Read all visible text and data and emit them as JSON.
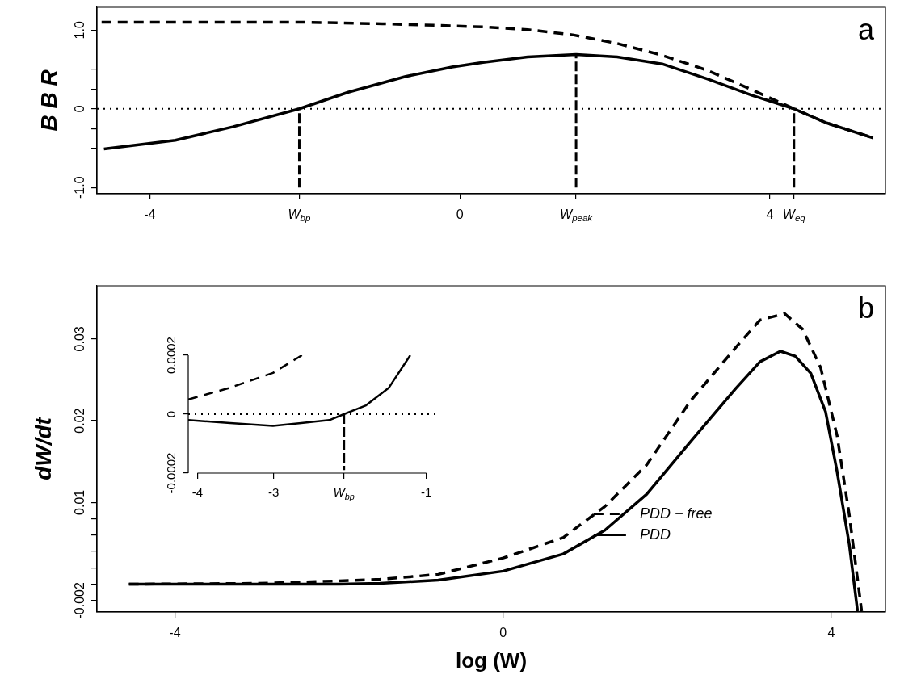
{
  "chart_data": [
    {
      "type": "line",
      "ylabel": "B B R",
      "annotations": [
        "a"
      ],
      "xlim": [
        -4.68,
        5.49
      ],
      "ylim": [
        -1.08,
        1.29
      ],
      "xticks": [
        -4,
        {
          "value": -2.07,
          "label": "W$_{bp}$"
        },
        0,
        {
          "value": 1.5,
          "label": "W$_{peak}$"
        },
        4,
        {
          "value": 4.31,
          "label": "W$_{eq}$"
        }
      ],
      "yticks": [
        {
          "value": -1,
          "label": "-1.0"
        },
        {
          "value": -0.5,
          "label": null
        },
        {
          "value": -0.25,
          "label": null
        },
        0,
        {
          "value": 0.25,
          "label": null
        },
        {
          "value": 0.5,
          "label": null
        },
        {
          "value": 1,
          "label": "1.0"
        }
      ],
      "ref_lines": [
        {
          "axis": "y",
          "value": 0,
          "line_style": "dotted",
          "color": "#000000"
        }
      ],
      "series": [
        {
          "color": "#000000",
          "line_style": "dashed",
          "x": [
            -4.62,
            -3,
            -2,
            -1,
            -0.28,
            0.3,
            0.875,
            1.455,
            2.03,
            2.61,
            3.19,
            3.77,
            4.31,
            4.73,
            5.33
          ],
          "values": [
            1.1,
            1.1,
            1.1,
            1.08,
            1.06,
            1.04,
            1.006,
            0.94,
            0.83,
            0.68,
            0.49,
            0.24,
            0.0,
            -0.18,
            -0.37
          ]
        },
        {
          "color": "#000000",
          "line_style": "solid",
          "x": [
            -4.59,
            -3.67,
            -2.93,
            -2.07,
            -1.44,
            -0.7,
            -0.1,
            0.3,
            0.875,
            1.5,
            2.03,
            2.61,
            3.19,
            3.77,
            4.31,
            4.73,
            5.33
          ],
          "values": [
            -0.51,
            -0.4,
            -0.23,
            0,
            0.21,
            0.41,
            0.53,
            0.59,
            0.66,
            0.69,
            0.66,
            0.57,
            0.38,
            0.17,
            0,
            -0.18,
            -0.37
          ]
        },
        {
          "color": "#000000",
          "line_style": "dashed",
          "x": [
            -2.07,
            -2.07
          ],
          "values": [
            -1,
            0
          ]
        },
        {
          "color": "#000000",
          "line_style": "dashed",
          "x": [
            1.5,
            1.5
          ],
          "values": [
            -1,
            0.69
          ]
        },
        {
          "color": "#000000",
          "line_style": "dashed",
          "x": [
            4.31,
            4.31
          ],
          "values": [
            -1,
            0
          ]
        }
      ]
    },
    {
      "type": "line",
      "xlabel": "log (W)",
      "ylabel": "dW/dt",
      "annotations": [
        "b"
      ],
      "legend": "right",
      "xlim": [
        -4.95,
        4.66
      ],
      "ylim": [
        -0.0034,
        0.0365
      ],
      "xticks": [
        -4,
        0,
        4
      ],
      "yticks": [
        -0.002,
        {
          "value": 0,
          "label": null
        },
        {
          "value": 0.002,
          "label": null
        },
        {
          "value": 0.004,
          "label": null
        },
        {
          "value": 0.006,
          "label": null
        },
        {
          "value": 0.008,
          "label": null
        },
        0.01,
        0.02,
        0.03
      ],
      "series": [
        {
          "name": "PDD − free",
          "color": "#000000",
          "line_style": "dashed",
          "x": [
            -4.56,
            -3,
            -2,
            -1.5,
            -0.79,
            0,
            0.733,
            1.24,
            1.75,
            2.29,
            2.84,
            3.13,
            3.43,
            3.65,
            3.87,
            4.07,
            4.22,
            4.37
          ],
          "values": [
            0,
            0.0001,
            0.0004,
            0.0006,
            0.0012,
            0.0032,
            0.0057,
            0.0095,
            0.0146,
            0.0225,
            0.029,
            0.0323,
            0.0331,
            0.0312,
            0.0265,
            0.0182,
            0.0084,
            -0.0033
          ]
        },
        {
          "name": "PDD",
          "color": "#000000",
          "line_style": "solid",
          "x": [
            -4.56,
            -3,
            -2,
            -1.5,
            -0.79,
            0,
            0.733,
            1.24,
            1.75,
            2.29,
            2.84,
            3.13,
            3.38,
            3.56,
            3.75,
            3.93,
            4.07,
            4.22,
            4.32
          ],
          "values": [
            0,
            0,
            0,
            0.0001,
            0.0005,
            0.0016,
            0.0037,
            0.0066,
            0.011,
            0.0175,
            0.024,
            0.0272,
            0.0285,
            0.0279,
            0.0258,
            0.0211,
            0.0138,
            0.0048,
            -0.0033
          ]
        }
      ]
    },
    {
      "type": "line",
      "xlim": [
        -4.12,
        -0.88
      ],
      "ylim": [
        -0.0002,
        0.0002
      ],
      "xticks": [
        -4,
        -3,
        {
          "value": -2.08,
          "label": "W$_{bp}$"
        },
        -1
      ],
      "yticks": [
        -0.0002,
        0,
        0.0002
      ],
      "ref_lines": [
        {
          "axis": "y",
          "value": 0,
          "line_style": "dotted",
          "color": "#000000"
        }
      ],
      "series": [
        {
          "color": "#000000",
          "line_style": "dashed",
          "x": [
            -4.12,
            -3.57,
            -3.01,
            -2.63
          ],
          "values": [
            5e-05,
            9e-05,
            0.00014,
            0.0002
          ]
        },
        {
          "color": "#000000",
          "line_style": "solid",
          "x": [
            -4.12,
            -3.57,
            -3.01,
            -2.64,
            -2.27,
            -2.08,
            -1.79,
            -1.49,
            -1.21
          ],
          "values": [
            -2e-05,
            -3e-05,
            -4e-05,
            -3e-05,
            -2e-05,
            0,
            3e-05,
            9e-05,
            0.0002
          ]
        },
        {
          "color": "#000000",
          "line_style": "dashed",
          "x": [
            -2.08,
            -2.08
          ],
          "values": [
            0,
            -0.00019
          ]
        }
      ]
    }
  ]
}
